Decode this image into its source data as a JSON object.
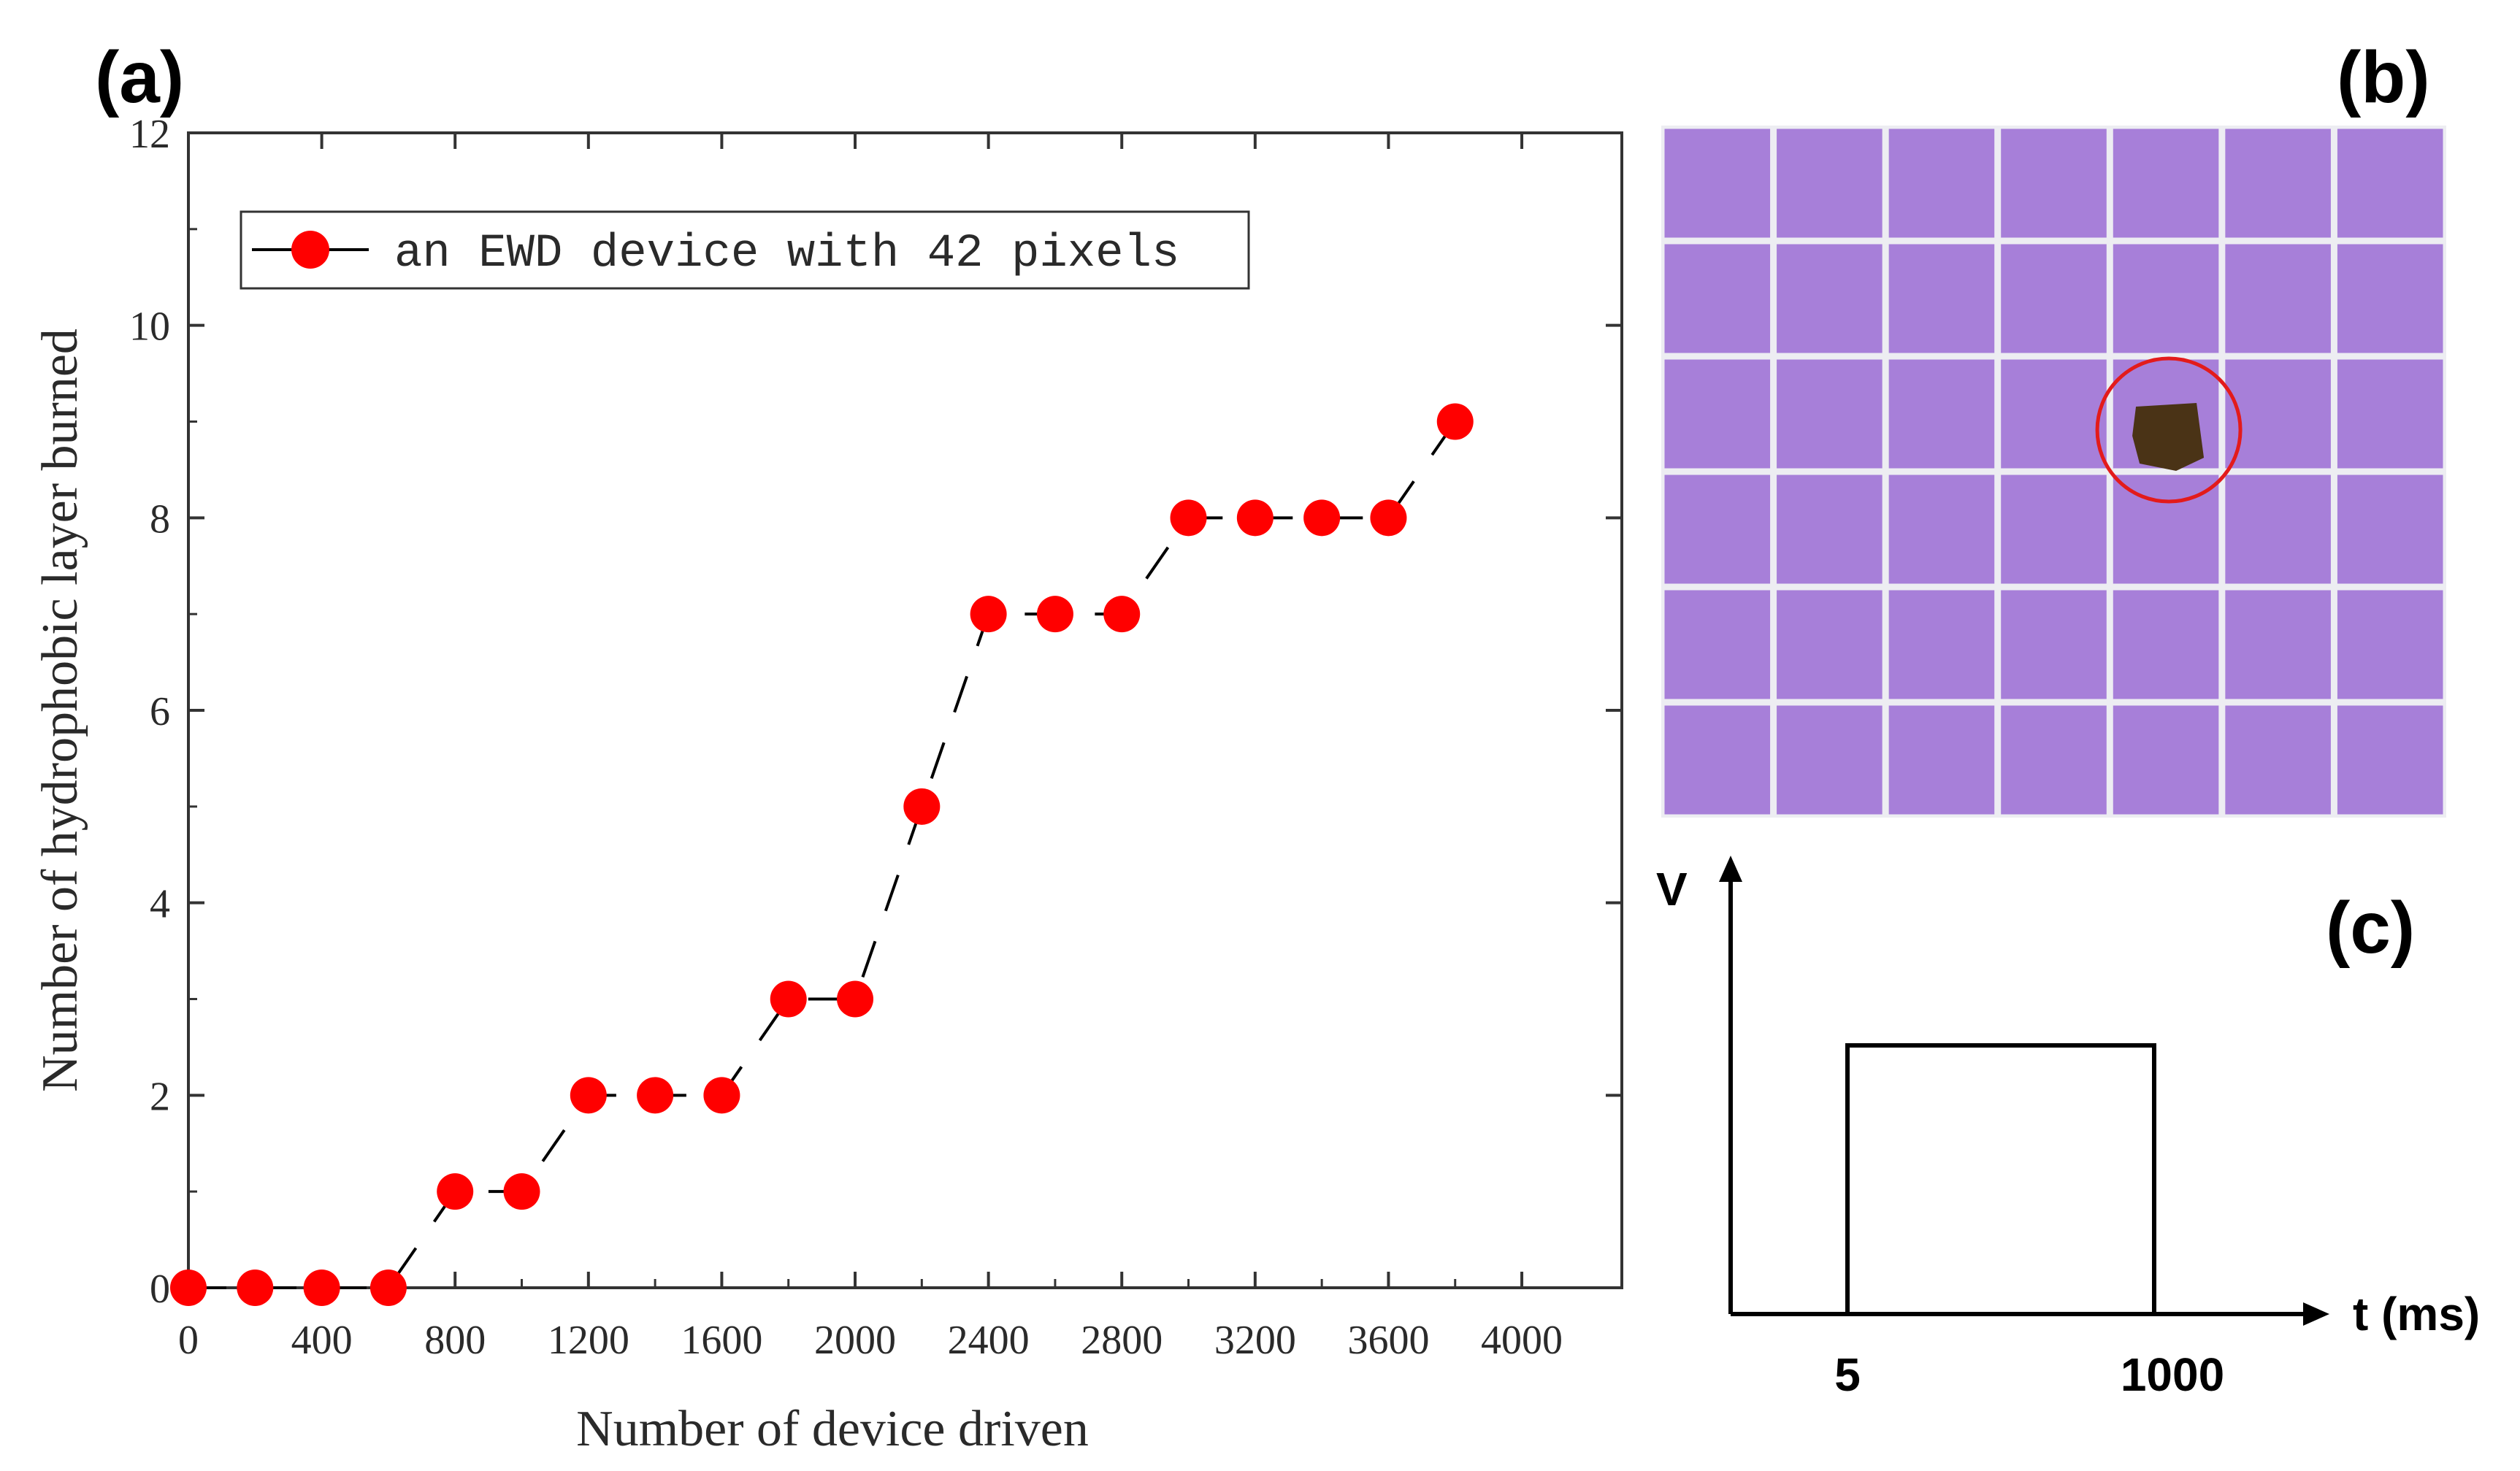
{
  "panel_labels": {
    "a": "(a)",
    "b": "(b)",
    "c": "(c)"
  },
  "chart_data": [
    {
      "type": "line",
      "panel": "(a)",
      "title": "",
      "xlabel": "Number of device driven",
      "ylabel": "Number of hydrophobic layer burned",
      "xlim": [
        0,
        4300
      ],
      "ylim": [
        0,
        12
      ],
      "xticks": [
        0,
        400,
        800,
        1200,
        1600,
        2000,
        2400,
        2800,
        3200,
        3600,
        4000
      ],
      "yticks": [
        0,
        2,
        4,
        6,
        8,
        10,
        12
      ],
      "legend_position": "top-left",
      "grid": false,
      "series": [
        {
          "name": "an EWD device with 42 pixels",
          "color": "#ff0000",
          "line_color": "#000000",
          "marker": "circle",
          "x": [
            0,
            200,
            400,
            600,
            800,
            1000,
            1200,
            1400,
            1600,
            1800,
            2000,
            2200,
            2400,
            2600,
            2800,
            3000,
            3200,
            3400,
            3600,
            3800
          ],
          "y": [
            0,
            0,
            0,
            0,
            1,
            1,
            2,
            2,
            2,
            3,
            3,
            5,
            7,
            7,
            7,
            8,
            8,
            8,
            8,
            9
          ]
        }
      ]
    },
    {
      "type": "line",
      "panel": "(c)",
      "ylabel": "V",
      "xlabel": "t (ms)",
      "xticks": [
        "5",
        "1000"
      ],
      "description_shape": "rectangular pulse"
    }
  ],
  "micrograph": {
    "panel": "(b)",
    "grid_cols": 7,
    "grid_rows": 6,
    "pixel_color": "#a77fd9",
    "gap_color": "#ededf2",
    "burned_pixel": {
      "col": 5,
      "row": 3
    },
    "highlight_color": "#e31b1b"
  }
}
